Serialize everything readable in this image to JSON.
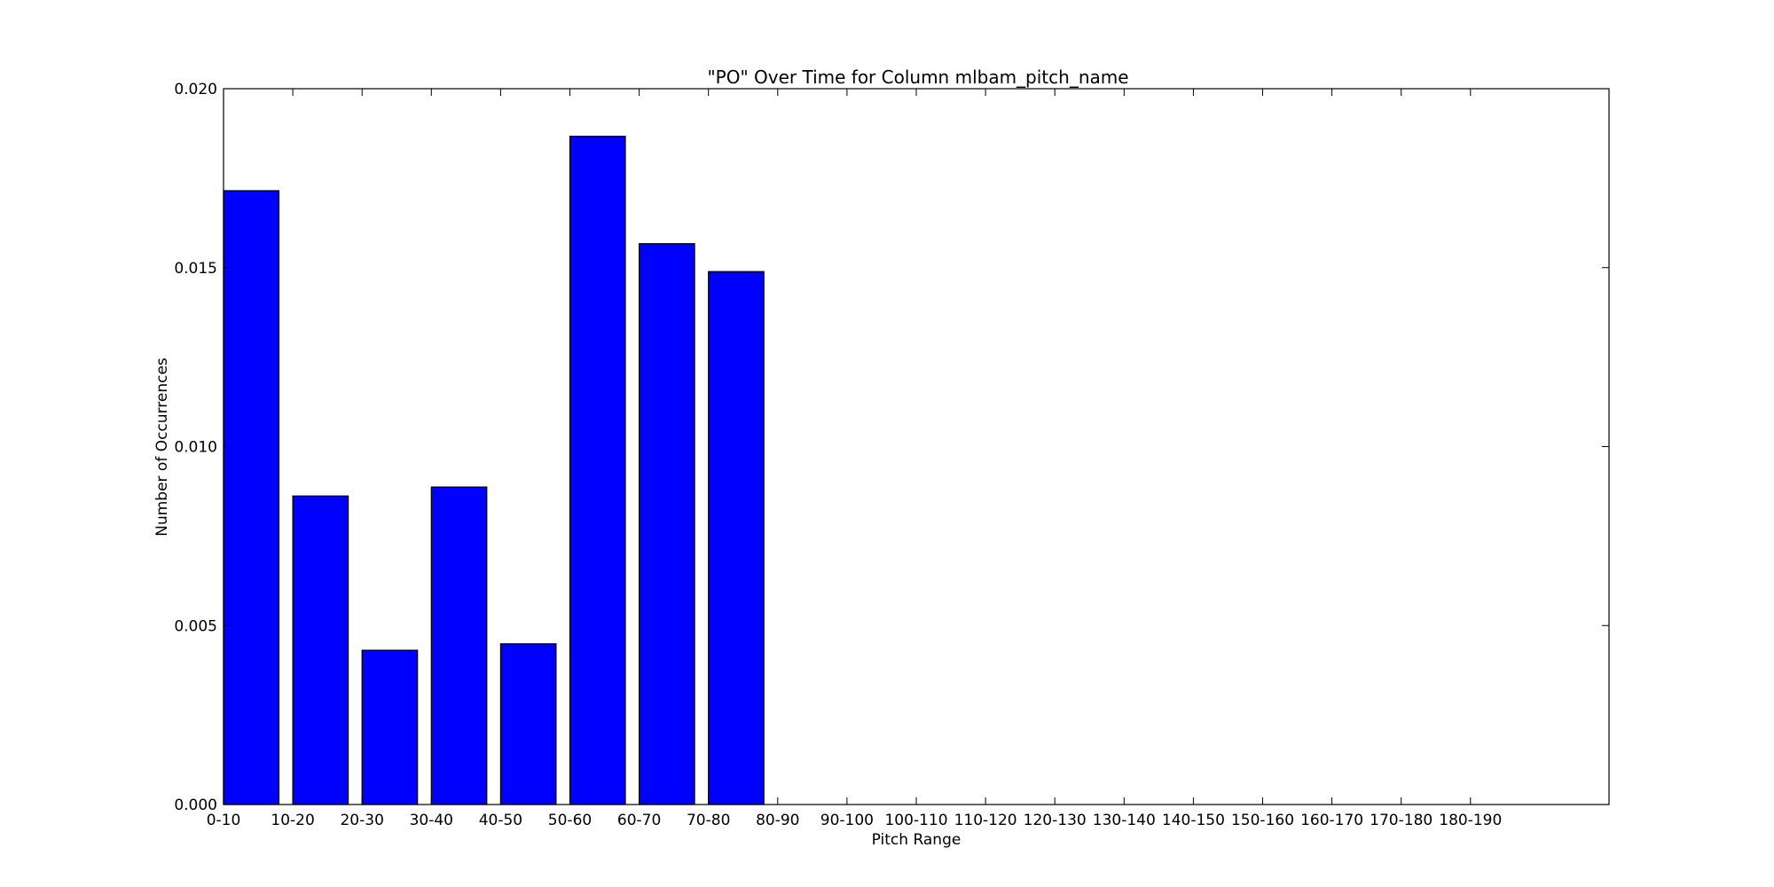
{
  "chart_data": {
    "type": "bar",
    "title": "\"PO\" Over Time for Column mlbam_pitch_name",
    "xlabel": "Pitch Range",
    "ylabel": "Number of Occurrences",
    "categories": [
      "0-10",
      "10-20",
      "20-30",
      "30-40",
      "40-50",
      "50-60",
      "60-70",
      "70-80",
      "80-90",
      "90-100",
      "100-110",
      "110-120",
      "120-130",
      "130-140",
      "140-150",
      "150-160",
      "160-170",
      "170-180",
      "180-190"
    ],
    "values": [
      0.01715,
      0.00862,
      0.00431,
      0.00887,
      0.00449,
      0.01867,
      0.01567,
      0.01489,
      0,
      0,
      0,
      0,
      0,
      0,
      0,
      0,
      0,
      0,
      0
    ],
    "ylim": [
      0,
      0.02
    ],
    "yticks": [
      "0.000",
      "0.005",
      "0.010",
      "0.015",
      "0.020"
    ],
    "ytick_values": [
      0,
      0.005,
      0.01,
      0.015,
      0.02
    ],
    "xlim": [
      0,
      20
    ],
    "bar_width": 0.8,
    "bar_color": "#0000ff",
    "edge_color": "#000000",
    "grid": false,
    "legend": "none"
  }
}
